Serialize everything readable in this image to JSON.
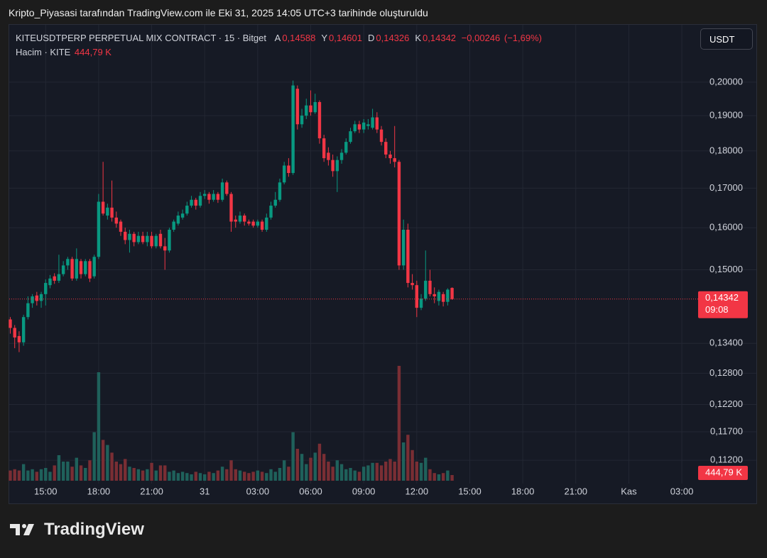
{
  "header": {
    "caption": "Kripto_Piyasasi tarafından TradingView.com ile Eki 31, 2025 14:05 UTC+3 tarihinde oluşturuldu"
  },
  "chart_data": {
    "type": "candlestick",
    "symbol": "KITEUSDTPERP PERPETUAL MIX CONTRACT · 15 · Bitget",
    "ohlc_legend": [
      {
        "label": "A",
        "value": 0.14588,
        "value_label": "0,14588"
      },
      {
        "label": "Y",
        "value": 0.14601,
        "value_label": "0,14601"
      },
      {
        "label": "D",
        "value": 0.14326,
        "value_label": "0,14326"
      },
      {
        "label": "K",
        "value": 0.14342,
        "value_label": "0,14342"
      }
    ],
    "change": {
      "value": -0.00246,
      "label": "−0,00246"
    },
    "change_percent": {
      "value": -1.69,
      "label": "(−1,69%)"
    },
    "volume_legend": {
      "label": "Hacim · KITE",
      "value": 444.79,
      "value_label": "444,79 K"
    },
    "currency": "USDT",
    "up_color": "#089981",
    "down_color": "#f23645",
    "volume_up_color": "#1f615b",
    "volume_down_color": "#7a2e34",
    "log_y": true,
    "grid": true,
    "xlim": [
      12.9,
      51.6
    ],
    "xticks": [
      {
        "value": 15,
        "label": "15:00"
      },
      {
        "value": 18,
        "label": "18:00"
      },
      {
        "value": 21,
        "label": "21:00"
      },
      {
        "value": 24,
        "label": "31"
      },
      {
        "value": 27,
        "label": "03:00"
      },
      {
        "value": 30,
        "label": "06:00"
      },
      {
        "value": 33,
        "label": "09:00"
      },
      {
        "value": 36,
        "label": "12:00"
      },
      {
        "value": 39,
        "label": "15:00"
      },
      {
        "value": 42,
        "label": "18:00"
      },
      {
        "value": 45,
        "label": "21:00"
      },
      {
        "value": 48,
        "label": "Kas"
      },
      {
        "value": 51,
        "label": "03:00"
      }
    ],
    "ylim": [
      0.1083,
      0.2184
    ],
    "yticks": [
      {
        "value": 0.2,
        "label": "0,20000"
      },
      {
        "value": 0.19,
        "label": "0,19000"
      },
      {
        "value": 0.18,
        "label": "0,18000"
      },
      {
        "value": 0.17,
        "label": "0,17000"
      },
      {
        "value": 0.16,
        "label": "0,16000"
      },
      {
        "value": 0.15,
        "label": "0,15000"
      },
      {
        "value": 0.134,
        "label": "0,13400"
      },
      {
        "value": 0.128,
        "label": "0,12800"
      },
      {
        "value": 0.122,
        "label": "0,12200"
      },
      {
        "value": 0.117,
        "label": "0,11700"
      },
      {
        "value": 0.112,
        "label": "0,11200"
      }
    ],
    "volume_ylim": [
      0,
      10000
    ],
    "last_price": {
      "value": 0.14342,
      "label": "0,14342",
      "countdown": "09:08"
    },
    "x": [
      13,
      13.25,
      13.5,
      13.75,
      14,
      14.25,
      14.5,
      14.75,
      15,
      15.25,
      15.5,
      15.75,
      16,
      16.25,
      16.5,
      16.75,
      17,
      17.25,
      17.5,
      17.75,
      18,
      18.25,
      18.5,
      18.75,
      19,
      19.25,
      19.5,
      19.75,
      20,
      20.25,
      20.5,
      20.75,
      21,
      21.25,
      21.5,
      21.75,
      22,
      22.25,
      22.5,
      22.75,
      23,
      23.25,
      23.5,
      23.75,
      24,
      24.25,
      24.5,
      24.75,
      25,
      25.25,
      25.5,
      25.75,
      26,
      26.25,
      26.5,
      26.75,
      27,
      27.25,
      27.5,
      27.75,
      28,
      28.25,
      28.5,
      28.75,
      29,
      29.25,
      29.5,
      29.75,
      30,
      30.25,
      30.5,
      30.75,
      31,
      31.25,
      31.5,
      31.75,
      32,
      32.25,
      32.5,
      32.75,
      33,
      33.25,
      33.5,
      33.75,
      34,
      34.25,
      34.5,
      34.75,
      35,
      35.25,
      35.5,
      35.75,
      36,
      36.25,
      36.5,
      36.75,
      37,
      37.25,
      37.5,
      37.75,
      38
    ],
    "open": [
      0.139,
      0.1372,
      0.1355,
      0.1342,
      0.1395,
      0.1425,
      0.1442,
      0.143,
      0.1445,
      0.1465,
      0.1485,
      0.1475,
      0.149,
      0.151,
      0.1525,
      0.148,
      0.152,
      0.149,
      0.152,
      0.1485,
      0.153,
      0.1665,
      0.163,
      0.165,
      0.1625,
      0.1615,
      0.159,
      0.157,
      0.1585,
      0.1565,
      0.158,
      0.1565,
      0.158,
      0.1555,
      0.1585,
      0.1555,
      0.1545,
      0.1595,
      0.161,
      0.1625,
      0.1635,
      0.1655,
      0.167,
      0.1655,
      0.168,
      0.1685,
      0.167,
      0.1685,
      0.167,
      0.1715,
      0.1685,
      0.162,
      0.1615,
      0.163,
      0.1615,
      0.1615,
      0.1605,
      0.1615,
      0.1595,
      0.1625,
      0.1655,
      0.167,
      0.1715,
      0.176,
      0.174,
      0.198,
      0.1875,
      0.19,
      0.193,
      0.191,
      0.194,
      0.1835,
      0.1795,
      0.1775,
      0.1745,
      0.1775,
      0.1795,
      0.1825,
      0.1855,
      0.1875,
      0.186,
      0.187,
      0.1865,
      0.1895,
      0.186,
      0.1825,
      0.179,
      0.178,
      0.177,
      0.151,
      0.1595,
      0.147,
      0.1465,
      0.1415,
      0.1435,
      0.1475,
      0.1445,
      0.143,
      0.1445,
      0.1428,
      0.14588
    ],
    "high": [
      0.1395,
      0.1378,
      0.1365,
      0.14,
      0.144,
      0.1445,
      0.145,
      0.145,
      0.1478,
      0.1488,
      0.1492,
      0.1535,
      0.152,
      0.153,
      0.153,
      0.155,
      0.1525,
      0.1525,
      0.1525,
      0.1535,
      0.1685,
      0.177,
      0.166,
      0.172,
      0.164,
      0.162,
      0.16,
      0.1595,
      0.159,
      0.159,
      0.159,
      0.159,
      0.159,
      0.1585,
      0.1595,
      0.1575,
      0.16,
      0.162,
      0.164,
      0.1645,
      0.1665,
      0.168,
      0.1675,
      0.169,
      0.1695,
      0.169,
      0.1695,
      0.169,
      0.1725,
      0.172,
      0.169,
      0.163,
      0.164,
      0.1635,
      0.162,
      0.162,
      0.162,
      0.162,
      0.1635,
      0.1665,
      0.169,
      0.1725,
      0.177,
      0.178,
      0.2005,
      0.199,
      0.192,
      0.195,
      0.1975,
      0.1965,
      0.1945,
      0.1845,
      0.181,
      0.179,
      0.1785,
      0.1805,
      0.1835,
      0.1865,
      0.1885,
      0.1885,
      0.189,
      0.189,
      0.192,
      0.191,
      0.187,
      0.1835,
      0.18,
      0.187,
      0.1775,
      0.162,
      0.161,
      0.149,
      0.1475,
      0.1445,
      0.1545,
      0.15,
      0.146,
      0.1455,
      0.145,
      0.1458,
      0.14601
    ],
    "low": [
      0.136,
      0.133,
      0.1322,
      0.1335,
      0.139,
      0.1415,
      0.142,
      0.1415,
      0.142,
      0.1458,
      0.1468,
      0.147,
      0.1485,
      0.15,
      0.1475,
      0.1475,
      0.148,
      0.1485,
      0.1472,
      0.148,
      0.1525,
      0.163,
      0.162,
      0.1615,
      0.16,
      0.158,
      0.156,
      0.154,
      0.1555,
      0.156,
      0.156,
      0.1555,
      0.155,
      0.155,
      0.155,
      0.15,
      0.154,
      0.159,
      0.1605,
      0.162,
      0.163,
      0.165,
      0.1645,
      0.165,
      0.1672,
      0.166,
      0.1665,
      0.1662,
      0.1665,
      0.168,
      0.159,
      0.16,
      0.161,
      0.1605,
      0.1605,
      0.16,
      0.16,
      0.159,
      0.159,
      0.162,
      0.165,
      0.1665,
      0.171,
      0.173,
      0.1735,
      0.186,
      0.1865,
      0.189,
      0.19,
      0.1905,
      0.182,
      0.177,
      0.176,
      0.173,
      0.169,
      0.1765,
      0.179,
      0.182,
      0.185,
      0.185,
      0.185,
      0.186,
      0.186,
      0.185,
      0.1815,
      0.178,
      0.1765,
      0.1755,
      0.15,
      0.15,
      0.146,
      0.1455,
      0.1395,
      0.141,
      0.143,
      0.144,
      0.1425,
      0.142,
      0.1418,
      0.142,
      0.14326
    ],
    "close": [
      0.1372,
      0.1352,
      0.1342,
      0.1395,
      0.1425,
      0.144,
      0.143,
      0.1445,
      0.147,
      0.148,
      0.1475,
      0.149,
      0.151,
      0.1525,
      0.148,
      0.1525,
      0.149,
      0.152,
      0.148,
      0.153,
      0.1665,
      0.1635,
      0.165,
      0.1625,
      0.161,
      0.159,
      0.157,
      0.1585,
      0.1565,
      0.158,
      0.1565,
      0.158,
      0.1555,
      0.158,
      0.1555,
      0.1545,
      0.1595,
      0.1615,
      0.163,
      0.1635,
      0.1655,
      0.167,
      0.1655,
      0.168,
      0.1685,
      0.167,
      0.1685,
      0.167,
      0.1715,
      0.1685,
      0.1615,
      0.1615,
      0.163,
      0.1615,
      0.161,
      0.1605,
      0.1615,
      0.1595,
      0.1625,
      0.1655,
      0.167,
      0.1715,
      0.176,
      0.174,
      0.199,
      0.1875,
      0.19,
      0.193,
      0.191,
      0.194,
      0.1835,
      0.178,
      0.1775,
      0.1745,
      0.1775,
      0.1795,
      0.1825,
      0.1855,
      0.1875,
      0.186,
      0.188,
      0.1875,
      0.1895,
      0.186,
      0.1825,
      0.179,
      0.178,
      0.177,
      0.151,
      0.1595,
      0.147,
      0.1465,
      0.1415,
      0.1435,
      0.1475,
      0.1445,
      0.144,
      0.145,
      0.1428,
      0.1455,
      0.14342
    ],
    "volume": [
      800,
      900,
      800,
      1300,
      800,
      900,
      700,
      900,
      1000,
      700,
      1200,
      2000,
      1500,
      1500,
      1100,
      1800,
      1200,
      1000,
      1600,
      3800,
      8500,
      3200,
      2800,
      2200,
      1500,
      1300,
      1700,
      1100,
      1000,
      900,
      800,
      900,
      1400,
      800,
      1200,
      1200,
      700,
      800,
      600,
      700,
      600,
      500,
      700,
      600,
      500,
      700,
      600,
      800,
      1100,
      900,
      1600,
      900,
      800,
      700,
      600,
      700,
      800,
      700,
      600,
      900,
      700,
      1000,
      1600,
      1100,
      3800,
      2500,
      2100,
      1300,
      1800,
      2200,
      2900,
      2100,
      1500,
      1100,
      1600,
      1300,
      900,
      1000,
      800,
      700,
      1100,
      1200,
      1400,
      1400,
      1200,
      1500,
      1700,
      1500,
      9000,
      3000,
      3600,
      2400,
      1500,
      1400,
      1800,
      900,
      600,
      500,
      600,
      800,
      444.79
    ]
  },
  "footer": {
    "logo": "TradingView"
  }
}
